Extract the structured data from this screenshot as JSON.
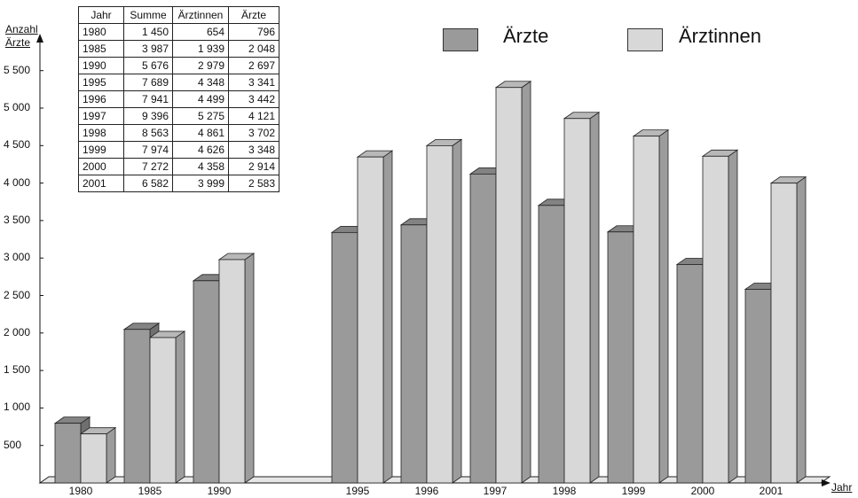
{
  "chart_data": {
    "type": "bar",
    "categories": [
      "1980",
      "1985",
      "1990",
      "1995",
      "1996",
      "1997",
      "1998",
      "1999",
      "2000",
      "2001"
    ],
    "series": [
      {
        "name": "Ärzte",
        "values": [
          796,
          2048,
          2697,
          3341,
          3442,
          4121,
          3702,
          3348,
          2914,
          2583
        ],
        "color": "#9a9a9a"
      },
      {
        "name": "Ärztinnen",
        "values": [
          654,
          1939,
          2979,
          4348,
          4499,
          5275,
          4861,
          4626,
          4358,
          3999
        ],
        "color": "#d8d8d8"
      }
    ],
    "ylabel_line1": "Anzahl",
    "ylabel_line2": "Ärzte",
    "xlabel": "Jahr",
    "ylim": [
      0,
      5500
    ],
    "yticks": [
      500,
      1000,
      1500,
      2000,
      2500,
      3000,
      3500,
      4000,
      4500,
      5000,
      5500
    ],
    "ytick_labels": [
      "500",
      "1 000",
      "1 500",
      "2 000",
      "2 500",
      "3 000",
      "3 500",
      "4 000",
      "4 500",
      "5 000",
      "5 500"
    ],
    "legend": [
      "Ärzte",
      "Ärztinnen"
    ],
    "legend_position": "top-right",
    "style": "3d",
    "table": {
      "headers": [
        "Jahr",
        "Summe",
        "Ärztinnen",
        "Ärzte"
      ],
      "rows": [
        [
          "1980",
          "1 450",
          "654",
          "796"
        ],
        [
          "1985",
          "3 987",
          "1 939",
          "2 048"
        ],
        [
          "1990",
          "5 676",
          "2 979",
          "2 697"
        ],
        [
          "1995",
          "7 689",
          "4 348",
          "3 341"
        ],
        [
          "1996",
          "7 941",
          "4 499",
          "3 442"
        ],
        [
          "1997",
          "9 396",
          "5 275",
          "4 121"
        ],
        [
          "1998",
          "8 563",
          "4 861",
          "3 702"
        ],
        [
          "1999",
          "7 974",
          "4 626",
          "3 348"
        ],
        [
          "2000",
          "7 272",
          "4 358",
          "2 914"
        ],
        [
          "2001",
          "6 582",
          "3 999",
          "2 583"
        ]
      ]
    }
  }
}
